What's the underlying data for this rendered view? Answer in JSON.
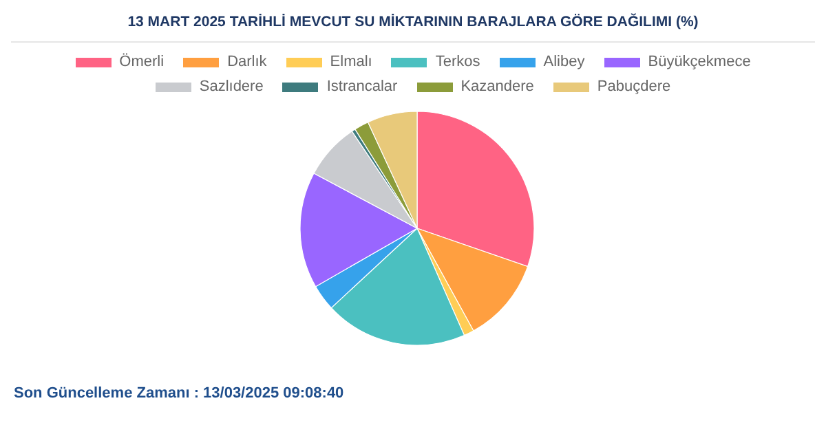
{
  "chart_data": {
    "type": "pie",
    "title": "13 MART 2025 TARİHLİ MEVCUT SU MİKTARININ BARAJLARA GÖRE DAĞILIMI (%)",
    "categories": [
      "Ömerli",
      "Darlık",
      "Elmalı",
      "Terkos",
      "Alibey",
      "Büyükçekmece",
      "Sazlıdere",
      "Istrancalar",
      "Kazandere",
      "Pabuçdere"
    ],
    "values": [
      30.3,
      11.7,
      1.4,
      19.7,
      3.6,
      16.1,
      7.8,
      0.5,
      2.0,
      6.9
    ],
    "colors": [
      "#ff6384",
      "#ff9f40",
      "#ffcd56",
      "#4bc0c0",
      "#36a2eb",
      "#9966ff",
      "#c9cbcf",
      "#3e7b7e",
      "#8c9c3a",
      "#e8c97a"
    ],
    "legend": "top",
    "annotations": [
      "Son Güncelleme Zamanı : 13/03/2025 09:08:40"
    ]
  }
}
